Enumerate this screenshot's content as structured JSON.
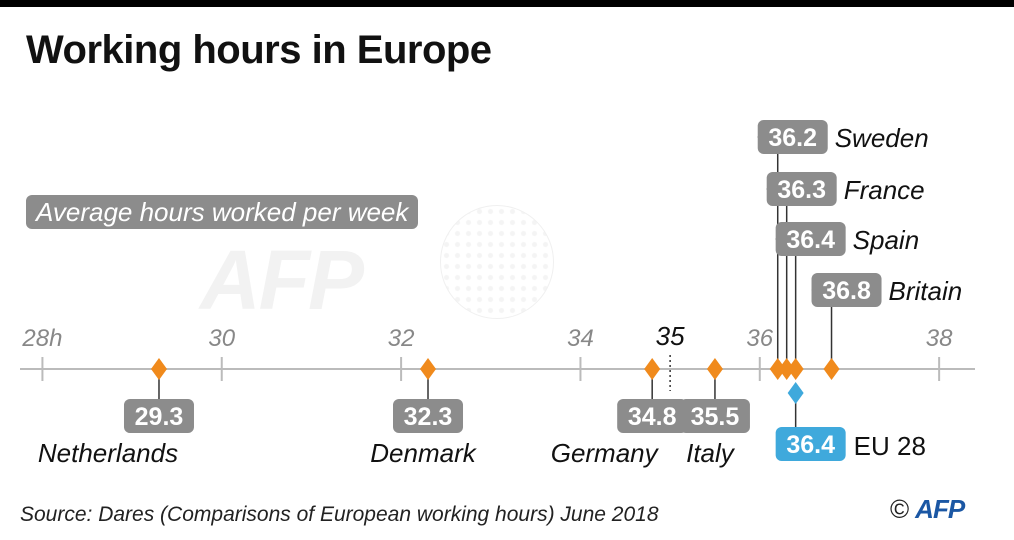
{
  "header": {
    "title": "Working hours in Europe",
    "subtitle": "Average hours worked per week"
  },
  "footer": {
    "source": "Source: Dares (Comparisons of European working hours) June 2018",
    "copyright": "©",
    "logo": "AFP"
  },
  "watermark": {
    "text": "AFP"
  },
  "colors": {
    "country": "#f08a1c",
    "average": "#3fa9dc",
    "label_box": "#8c8c8c",
    "axis": "#bbbbbb"
  },
  "chart_data": {
    "type": "scatter",
    "xlim": [
      27.75,
      38.4
    ],
    "ticks": [
      {
        "value": 28,
        "label": "28h"
      },
      {
        "value": 30,
        "label": "30"
      },
      {
        "value": 32,
        "label": "32"
      },
      {
        "value": 34,
        "label": "34"
      },
      {
        "value": 36,
        "label": "36"
      },
      {
        "value": 38,
        "label": "38"
      }
    ],
    "reference": {
      "value": 35,
      "label": "35"
    },
    "points": [
      {
        "country": "Netherlands",
        "value": 29.3,
        "label": "29.3",
        "side": "below"
      },
      {
        "country": "Denmark",
        "value": 32.3,
        "label": "32.3",
        "side": "below"
      },
      {
        "country": "Germany",
        "value": 34.8,
        "label": "34.8",
        "side": "below"
      },
      {
        "country": "Italy",
        "value": 35.5,
        "label": "35.5",
        "side": "below"
      },
      {
        "country": "Sweden",
        "value": 36.2,
        "label": "36.2",
        "side": "above"
      },
      {
        "country": "France",
        "value": 36.3,
        "label": "36.3",
        "side": "above"
      },
      {
        "country": "Spain",
        "value": 36.4,
        "label": "36.4",
        "side": "above"
      },
      {
        "country": "Britain",
        "value": 36.8,
        "label": "36.8",
        "side": "above"
      }
    ],
    "average": {
      "name": "EU 28",
      "value": 36.4,
      "label": "36.4"
    }
  }
}
